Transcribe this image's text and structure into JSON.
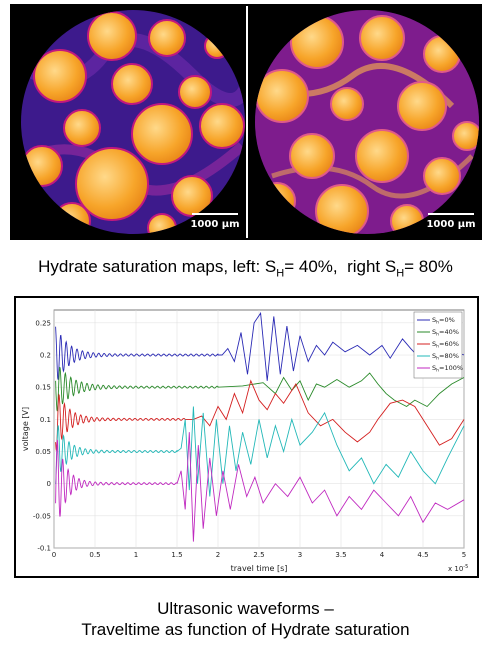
{
  "maps": {
    "scalebar_left": "1000 µm",
    "scalebar_right": "1000 µm",
    "colors": {
      "grain": "#f39a1c",
      "grain_light": "#ffd27a",
      "pore": "#3d1a8c",
      "pore_dark": "#1f0b55",
      "hydrate": "#c2187f"
    }
  },
  "caption_top": {
    "prefix": "Hydrate saturation maps, left: S",
    "sub1": "H",
    "mid": "= 40%,  right S",
    "sub2": "H",
    "suffix": "= 80%"
  },
  "chart_data": {
    "type": "line",
    "xlabel": "travel time [s]",
    "ylabel": "voltage [V]",
    "xlim": [
      0,
      5
    ],
    "ylim": [
      -0.1,
      0.27
    ],
    "x_exponent": "x 10",
    "x_exponent_power": "-5",
    "xticks": [
      "0",
      "0.5",
      "1",
      "1.5",
      "2",
      "2.5",
      "3",
      "3.5",
      "4",
      "4.5",
      "5"
    ],
    "yticks": [
      "-0.1",
      "-0.05",
      "0",
      "0.05",
      "0.1",
      "0.15",
      "0.2",
      "0.25"
    ],
    "grid": true,
    "legend_position": "top-right",
    "series": [
      {
        "name": "Sh=0%",
        "label_main": "S",
        "label_sub": "h",
        "label_rest": "=0%",
        "color": "#2b2bb5",
        "offset": 0.2,
        "ring": [
          0.045,
          0.04,
          0.6
        ],
        "arrival": 2.0,
        "points": [
          [
            2.0,
            0.2
          ],
          [
            2.05,
            0.2
          ],
          [
            2.12,
            0.21
          ],
          [
            2.2,
            0.19
          ],
          [
            2.28,
            0.235
          ],
          [
            2.36,
            0.17
          ],
          [
            2.44,
            0.25
          ],
          [
            2.52,
            0.265
          ],
          [
            2.6,
            0.16
          ],
          [
            2.68,
            0.26
          ],
          [
            2.76,
            0.17
          ],
          [
            2.84,
            0.245
          ],
          [
            2.92,
            0.175
          ],
          [
            3.0,
            0.23
          ],
          [
            3.1,
            0.19
          ],
          [
            3.2,
            0.215
          ],
          [
            3.3,
            0.2
          ],
          [
            3.4,
            0.22
          ],
          [
            3.55,
            0.205
          ],
          [
            3.7,
            0.215
          ],
          [
            3.85,
            0.2
          ],
          [
            4.0,
            0.215
          ],
          [
            4.1,
            0.195
          ],
          [
            4.25,
            0.225
          ],
          [
            4.35,
            0.21
          ],
          [
            4.5,
            0.19
          ],
          [
            4.65,
            0.205
          ],
          [
            4.8,
            0.21
          ],
          [
            5.0,
            0.2
          ]
        ]
      },
      {
        "name": "Sh=40%",
        "label_main": "S",
        "label_sub": "h",
        "label_rest": "=40%",
        "color": "#2a8a2a",
        "offset": 0.15,
        "ring": [
          0.04,
          0.035,
          0.7
        ],
        "arrival": 2.0,
        "points": [
          [
            2.0,
            0.15
          ],
          [
            2.3,
            0.152
          ],
          [
            2.55,
            0.157
          ],
          [
            2.7,
            0.14
          ],
          [
            2.8,
            0.165
          ],
          [
            2.9,
            0.145
          ],
          [
            3.0,
            0.16
          ],
          [
            3.1,
            0.13
          ],
          [
            3.2,
            0.155
          ],
          [
            3.3,
            0.15
          ],
          [
            3.45,
            0.162
          ],
          [
            3.6,
            0.15
          ],
          [
            3.75,
            0.16
          ],
          [
            3.85,
            0.172
          ],
          [
            3.95,
            0.155
          ],
          [
            4.05,
            0.14
          ],
          [
            4.15,
            0.13
          ],
          [
            4.3,
            0.12
          ],
          [
            4.4,
            0.13
          ],
          [
            4.55,
            0.12
          ],
          [
            4.7,
            0.14
          ],
          [
            4.85,
            0.155
          ],
          [
            5.0,
            0.165
          ]
        ]
      },
      {
        "name": "Sh=60%",
        "label_main": "S",
        "label_sub": "h",
        "label_rest": "=60%",
        "color": "#d42020",
        "offset": 0.1,
        "ring": [
          0.05,
          0.03,
          0.55
        ],
        "arrival": 1.6,
        "points": [
          [
            1.6,
            0.1
          ],
          [
            1.7,
            0.1
          ],
          [
            1.8,
            0.105
          ],
          [
            1.9,
            0.09
          ],
          [
            2.0,
            0.12
          ],
          [
            2.1,
            0.1
          ],
          [
            2.2,
            0.14
          ],
          [
            2.3,
            0.11
          ],
          [
            2.4,
            0.16
          ],
          [
            2.5,
            0.13
          ],
          [
            2.6,
            0.115
          ],
          [
            2.7,
            0.14
          ],
          [
            2.8,
            0.125
          ],
          [
            2.95,
            0.155
          ],
          [
            3.1,
            0.11
          ],
          [
            3.25,
            0.09
          ],
          [
            3.4,
            0.1
          ],
          [
            3.55,
            0.08
          ],
          [
            3.7,
            0.065
          ],
          [
            3.85,
            0.08
          ],
          [
            3.95,
            0.1
          ],
          [
            4.1,
            0.125
          ],
          [
            4.25,
            0.13
          ],
          [
            4.4,
            0.12
          ],
          [
            4.55,
            0.09
          ],
          [
            4.7,
            0.06
          ],
          [
            4.85,
            0.07
          ],
          [
            5.0,
            0.1
          ]
        ]
      },
      {
        "name": "Sh=80%",
        "label_main": "S",
        "label_sub": "h",
        "label_rest": "=80%",
        "color": "#23b8b8",
        "offset": 0.05,
        "ring": [
          0.05,
          0.035,
          0.5
        ],
        "arrival": 1.5,
        "points": [
          [
            1.5,
            0.05
          ],
          [
            1.55,
            0.055
          ],
          [
            1.6,
            0.1
          ],
          [
            1.65,
            -0.01
          ],
          [
            1.7,
            0.12
          ],
          [
            1.75,
            0.0
          ],
          [
            1.82,
            0.11
          ],
          [
            1.9,
            -0.02
          ],
          [
            1.98,
            0.1
          ],
          [
            2.06,
            0.0
          ],
          [
            2.14,
            0.09
          ],
          [
            2.22,
            0.02
          ],
          [
            2.3,
            0.08
          ],
          [
            2.4,
            0.03
          ],
          [
            2.5,
            0.1
          ],
          [
            2.6,
            0.04
          ],
          [
            2.7,
            0.09
          ],
          [
            2.8,
            0.05
          ],
          [
            2.9,
            0.1
          ],
          [
            3.0,
            0.06
          ],
          [
            3.15,
            0.08
          ],
          [
            3.3,
            0.11
          ],
          [
            3.45,
            0.06
          ],
          [
            3.6,
            0.02
          ],
          [
            3.75,
            0.04
          ],
          [
            3.9,
            0.0
          ],
          [
            4.05,
            0.03
          ],
          [
            4.2,
            0.01
          ],
          [
            4.35,
            0.05
          ],
          [
            4.5,
            0.02
          ],
          [
            4.65,
            0.0
          ],
          [
            4.8,
            0.04
          ],
          [
            5.0,
            0.09
          ]
        ]
      },
      {
        "name": "Sh=100%",
        "label_main": "S",
        "label_sub": "h",
        "label_rest": "=100%",
        "color": "#c02ac0",
        "offset": 0.0,
        "ring": [
          0.08,
          0.03,
          0.45
        ],
        "arrival": 1.5,
        "points": [
          [
            1.5,
            0.0
          ],
          [
            1.55,
            0.02
          ],
          [
            1.6,
            -0.04
          ],
          [
            1.65,
            0.08
          ],
          [
            1.7,
            -0.09
          ],
          [
            1.76,
            0.06
          ],
          [
            1.82,
            -0.07
          ],
          [
            1.9,
            0.04
          ],
          [
            1.98,
            -0.05
          ],
          [
            2.06,
            0.02
          ],
          [
            2.15,
            -0.04
          ],
          [
            2.25,
            0.03
          ],
          [
            2.35,
            -0.02
          ],
          [
            2.45,
            0.01
          ],
          [
            2.55,
            -0.03
          ],
          [
            2.7,
            0.0
          ],
          [
            2.85,
            -0.02
          ],
          [
            3.0,
            0.01
          ],
          [
            3.15,
            -0.03
          ],
          [
            3.3,
            -0.01
          ],
          [
            3.45,
            -0.05
          ],
          [
            3.6,
            -0.02
          ],
          [
            3.75,
            -0.04
          ],
          [
            3.9,
            -0.01
          ],
          [
            4.05,
            -0.03
          ],
          [
            4.2,
            -0.05
          ],
          [
            4.35,
            -0.02
          ],
          [
            4.5,
            -0.06
          ],
          [
            4.65,
            -0.03
          ],
          [
            4.8,
            -0.04
          ],
          [
            5.0,
            -0.025
          ]
        ]
      }
    ]
  },
  "caption_bottom": {
    "line1": "Ultrasonic waveforms –",
    "line2": "Traveltime as function of Hydrate saturation"
  }
}
